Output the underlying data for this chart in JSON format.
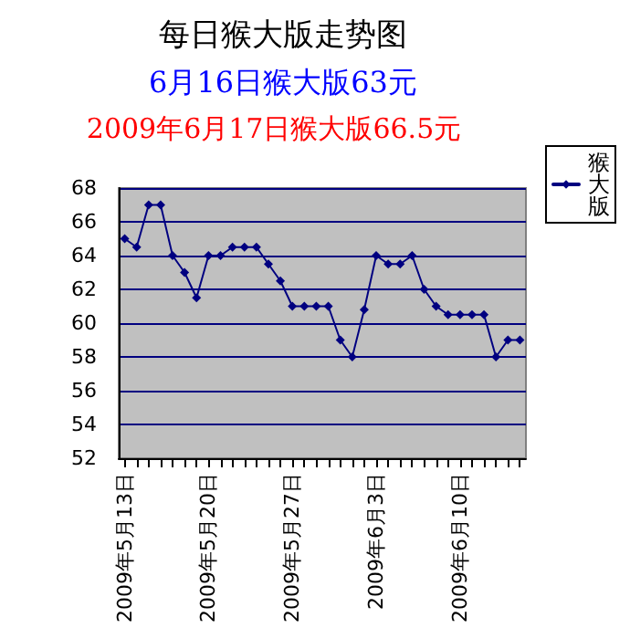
{
  "chart_data": {
    "type": "line",
    "title": "每日猴大版走势图",
    "subtitle": "6月16日猴大版63元",
    "annotations": [
      "2009年6月17日猴大版66.5元"
    ],
    "categories": [
      "2009年5月13日",
      null,
      null,
      null,
      null,
      null,
      null,
      "2009年5月20日",
      null,
      null,
      null,
      null,
      null,
      null,
      "2009年5月27日",
      null,
      null,
      null,
      null,
      null,
      null,
      "2009年6月3日",
      null,
      null,
      null,
      null,
      null,
      null,
      "2009年6月10日",
      null,
      null,
      null,
      null,
      null
    ],
    "series": [
      {
        "name": "猴大版",
        "color": "#000080",
        "values": [
          65,
          64.5,
          67,
          67,
          64,
          63,
          61.5,
          64,
          64,
          64.5,
          64.5,
          64.5,
          63.5,
          62.5,
          61,
          61,
          61,
          61,
          59,
          58,
          60.8,
          64,
          63.5,
          63.5,
          64,
          62,
          61,
          60.5,
          60.5,
          60.5,
          60.5,
          58,
          59,
          59
        ]
      }
    ],
    "ylim": [
      52,
      68
    ],
    "yticks": [
      52,
      54,
      56,
      58,
      60,
      62,
      64,
      66,
      68
    ],
    "grid": "y",
    "legend": "top right",
    "marker": "diamond",
    "line_style": "solid"
  }
}
